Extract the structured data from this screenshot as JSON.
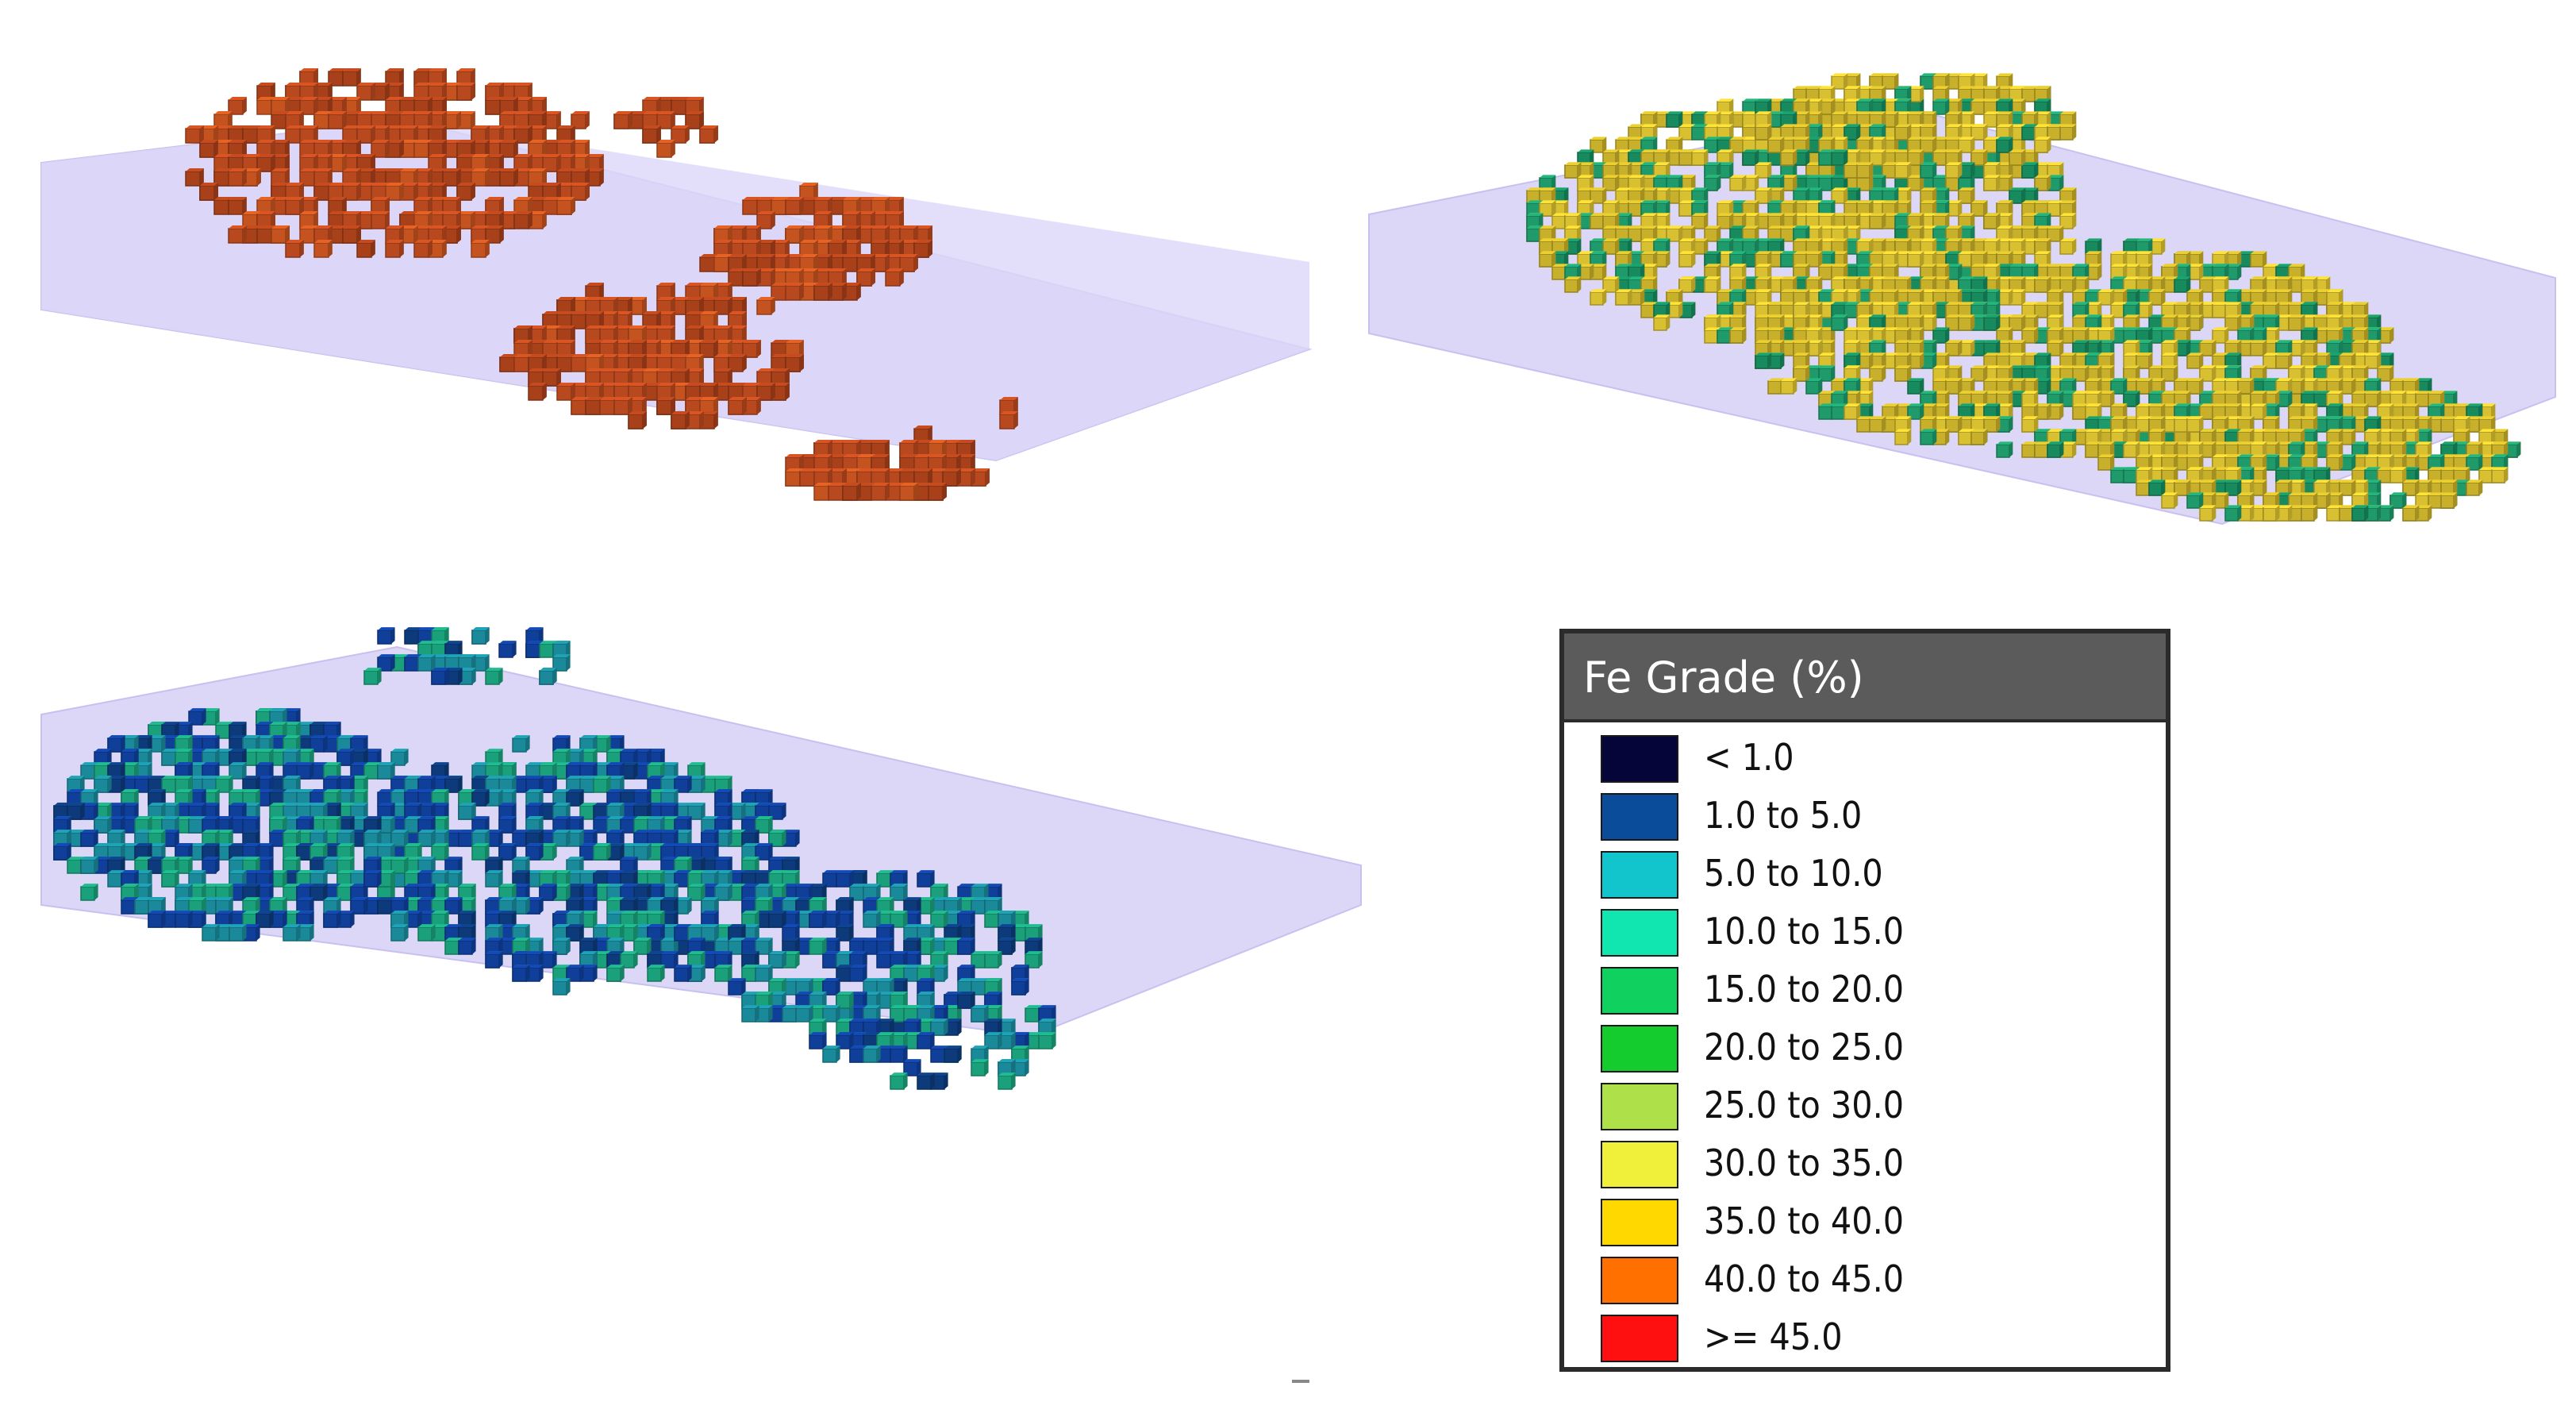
{
  "legend": {
    "title": "Fe Grade (%)",
    "items": [
      {
        "label": "< 1.0",
        "color": "#05053a"
      },
      {
        "label": "1.0 to 5.0",
        "color": "#0b4c9a"
      },
      {
        "label": "5.0 to 10.0",
        "color": "#12c4cc"
      },
      {
        "label": "10.0 to 15.0",
        "color": "#12e6b0"
      },
      {
        "label": "15.0 to 20.0",
        "color": "#10d060"
      },
      {
        "label": "20.0 to 25.0",
        "color": "#15cc2e"
      },
      {
        "label": "25.0 to 30.0",
        "color": "#aee04a"
      },
      {
        "label": "30.0 to 35.0",
        "color": "#f0f03a"
      },
      {
        "label": "35.0 to 40.0",
        "color": "#ffd800"
      },
      {
        "label": "40.0 to 45.0",
        "color": "#ff7000"
      },
      {
        "label": ">= 45.0",
        "color": "#ff1010"
      }
    ]
  },
  "models": {
    "top_left": {
      "dominant_class": "40.0 to 45.0",
      "block_color": "#b8481e"
    },
    "top_right": {
      "dominant_class": "30.0 to 35.0",
      "block_color": "#c8b02a",
      "secondary_color": "#1f9a6a"
    },
    "bottom_left": {
      "dominant_class": "5.0 to 10.0",
      "block_color": "#1a8a9a",
      "secondary_color": "#103f9a"
    },
    "plane_color": "#dcd6f7"
  }
}
